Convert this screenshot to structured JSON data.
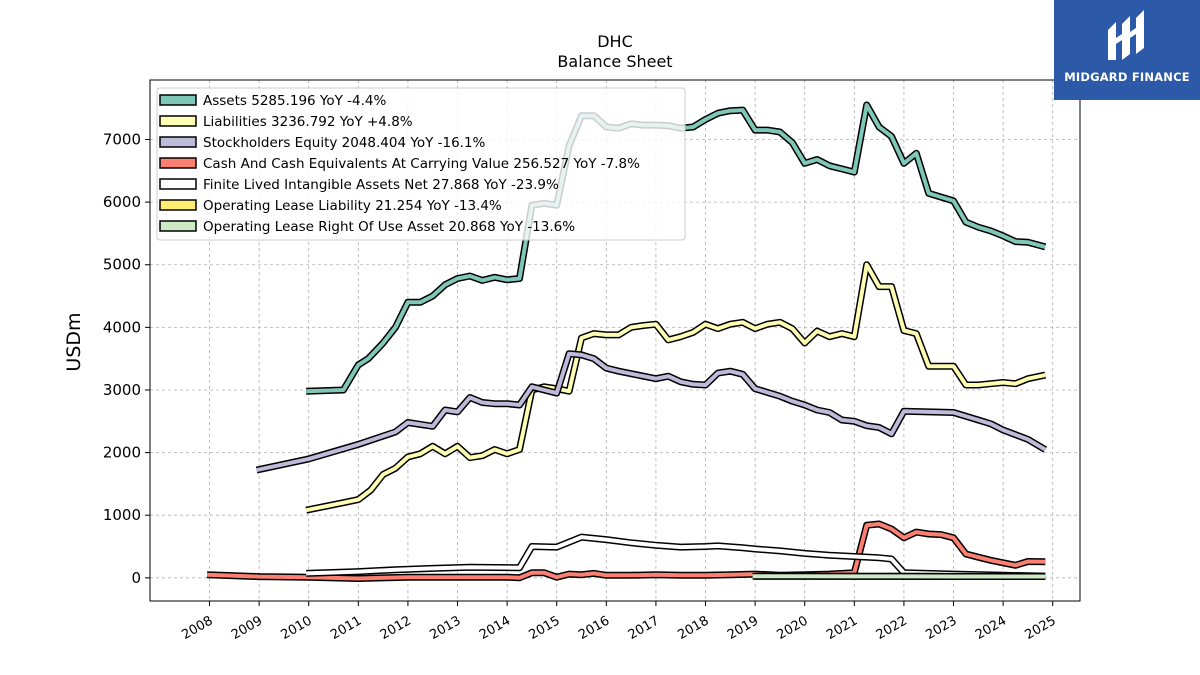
{
  "chart_data": {
    "type": "line",
    "title": "DHC",
    "subtitle": "Balance  Sheet",
    "ylabel": "USDm",
    "xlabel": "",
    "ylim": [
      -370,
      7950
    ],
    "xlim": [
      2006.8,
      2025.55
    ],
    "yticks": [
      0,
      1000,
      2000,
      3000,
      4000,
      5000,
      6000,
      7000
    ],
    "xticks": [
      2008,
      2009,
      2010,
      2011,
      2012,
      2013,
      2014,
      2015,
      2016,
      2017,
      2018,
      2019,
      2020,
      2021,
      2022,
      2023,
      2024,
      2025
    ],
    "grid": true,
    "legend_position": "top-left",
    "series": [
      {
        "name": "Assets",
        "legend_text": "Assets  5285.196 YoY -4.4%",
        "color": "#7fc8b8",
        "points": [
          [
            2009.95,
            2980
          ],
          [
            2010.7,
            3000
          ],
          [
            2011.0,
            3400
          ],
          [
            2011.2,
            3500
          ],
          [
            2011.5,
            3750
          ],
          [
            2011.75,
            4000
          ],
          [
            2012.0,
            4400
          ],
          [
            2012.25,
            4400
          ],
          [
            2012.5,
            4500
          ],
          [
            2012.75,
            4680
          ],
          [
            2013.0,
            4780
          ],
          [
            2013.25,
            4820
          ],
          [
            2013.5,
            4750
          ],
          [
            2013.75,
            4800
          ],
          [
            2014.0,
            4760
          ],
          [
            2014.25,
            4780
          ],
          [
            2014.5,
            5950
          ],
          [
            2014.75,
            5980
          ],
          [
            2015.0,
            5950
          ],
          [
            2015.25,
            6900
          ],
          [
            2015.5,
            7380
          ],
          [
            2015.75,
            7380
          ],
          [
            2016.0,
            7200
          ],
          [
            2016.25,
            7180
          ],
          [
            2016.5,
            7250
          ],
          [
            2016.75,
            7230
          ],
          [
            2017.0,
            7230
          ],
          [
            2017.25,
            7220
          ],
          [
            2017.5,
            7180
          ],
          [
            2017.75,
            7200
          ],
          [
            2018.0,
            7320
          ],
          [
            2018.25,
            7420
          ],
          [
            2018.5,
            7460
          ],
          [
            2018.75,
            7470
          ],
          [
            2019.0,
            7150
          ],
          [
            2019.25,
            7150
          ],
          [
            2019.5,
            7120
          ],
          [
            2019.75,
            6950
          ],
          [
            2020.0,
            6620
          ],
          [
            2020.25,
            6680
          ],
          [
            2020.5,
            6580
          ],
          [
            2020.75,
            6530
          ],
          [
            2021.0,
            6480
          ],
          [
            2021.25,
            7550
          ],
          [
            2021.5,
            7200
          ],
          [
            2021.75,
            7050
          ],
          [
            2022.0,
            6620
          ],
          [
            2022.25,
            6780
          ],
          [
            2022.5,
            6140
          ],
          [
            2022.75,
            6080
          ],
          [
            2023.0,
            6020
          ],
          [
            2023.25,
            5680
          ],
          [
            2023.5,
            5600
          ],
          [
            2023.75,
            5540
          ],
          [
            2024.0,
            5460
          ],
          [
            2024.25,
            5370
          ],
          [
            2024.5,
            5360
          ],
          [
            2024.85,
            5285
          ]
        ]
      },
      {
        "name": "Liabilities",
        "legend_text": "Liabilities  3236.792 YoY +4.8%",
        "color": "#ffffb3",
        "points": [
          [
            2009.95,
            1080
          ],
          [
            2010.7,
            1200
          ],
          [
            2011.0,
            1250
          ],
          [
            2011.25,
            1400
          ],
          [
            2011.5,
            1650
          ],
          [
            2011.75,
            1750
          ],
          [
            2012.0,
            1930
          ],
          [
            2012.25,
            1980
          ],
          [
            2012.5,
            2100
          ],
          [
            2012.75,
            1980
          ],
          [
            2013.0,
            2100
          ],
          [
            2013.25,
            1920
          ],
          [
            2013.5,
            1950
          ],
          [
            2013.75,
            2050
          ],
          [
            2014.0,
            1980
          ],
          [
            2014.25,
            2050
          ],
          [
            2014.5,
            3000
          ],
          [
            2014.75,
            3050
          ],
          [
            2015.0,
            3020
          ],
          [
            2015.25,
            2980
          ],
          [
            2015.5,
            3830
          ],
          [
            2015.75,
            3900
          ],
          [
            2016.0,
            3880
          ],
          [
            2016.25,
            3880
          ],
          [
            2016.5,
            4000
          ],
          [
            2016.75,
            4030
          ],
          [
            2017.0,
            4050
          ],
          [
            2017.25,
            3800
          ],
          [
            2017.5,
            3850
          ],
          [
            2017.75,
            3920
          ],
          [
            2018.0,
            4050
          ],
          [
            2018.25,
            3980
          ],
          [
            2018.5,
            4050
          ],
          [
            2018.75,
            4080
          ],
          [
            2019.0,
            3980
          ],
          [
            2019.25,
            4050
          ],
          [
            2019.5,
            4080
          ],
          [
            2019.75,
            3980
          ],
          [
            2020.0,
            3750
          ],
          [
            2020.25,
            3940
          ],
          [
            2020.5,
            3850
          ],
          [
            2020.75,
            3900
          ],
          [
            2021.0,
            3850
          ],
          [
            2021.25,
            5000
          ],
          [
            2021.5,
            4650
          ],
          [
            2021.75,
            4650
          ],
          [
            2022.0,
            3950
          ],
          [
            2022.25,
            3900
          ],
          [
            2022.5,
            3380
          ],
          [
            2022.75,
            3380
          ],
          [
            2023.0,
            3380
          ],
          [
            2023.25,
            3080
          ],
          [
            2023.5,
            3080
          ],
          [
            2023.75,
            3100
          ],
          [
            2024.0,
            3120
          ],
          [
            2024.25,
            3100
          ],
          [
            2024.5,
            3180
          ],
          [
            2024.85,
            3237
          ]
        ]
      },
      {
        "name": "Stockholders Equity",
        "legend_text": "Stockholders Equity  2048.404 YoY -16.1%",
        "color": "#bebada",
        "points": [
          [
            2008.95,
            1720
          ],
          [
            2010.0,
            1900
          ],
          [
            2011.0,
            2130
          ],
          [
            2011.75,
            2330
          ],
          [
            2012.0,
            2480
          ],
          [
            2012.25,
            2450
          ],
          [
            2012.5,
            2420
          ],
          [
            2012.75,
            2680
          ],
          [
            2013.0,
            2650
          ],
          [
            2013.25,
            2880
          ],
          [
            2013.5,
            2800
          ],
          [
            2013.75,
            2780
          ],
          [
            2014.0,
            2780
          ],
          [
            2014.25,
            2760
          ],
          [
            2014.5,
            3050
          ],
          [
            2014.75,
            3000
          ],
          [
            2015.0,
            2950
          ],
          [
            2015.25,
            3580
          ],
          [
            2015.5,
            3560
          ],
          [
            2015.75,
            3500
          ],
          [
            2016.0,
            3350
          ],
          [
            2016.25,
            3300
          ],
          [
            2016.5,
            3260
          ],
          [
            2016.75,
            3220
          ],
          [
            2017.0,
            3180
          ],
          [
            2017.25,
            3220
          ],
          [
            2017.5,
            3130
          ],
          [
            2017.75,
            3090
          ],
          [
            2018.0,
            3080
          ],
          [
            2018.25,
            3270
          ],
          [
            2018.5,
            3300
          ],
          [
            2018.75,
            3250
          ],
          [
            2019.0,
            3020
          ],
          [
            2019.5,
            2900
          ],
          [
            2019.75,
            2820
          ],
          [
            2020.0,
            2760
          ],
          [
            2020.25,
            2680
          ],
          [
            2020.5,
            2640
          ],
          [
            2020.75,
            2520
          ],
          [
            2021.0,
            2500
          ],
          [
            2021.25,
            2430
          ],
          [
            2021.5,
            2400
          ],
          [
            2021.75,
            2300
          ],
          [
            2022.0,
            2660
          ],
          [
            2022.5,
            2650
          ],
          [
            2023.0,
            2640
          ],
          [
            2023.5,
            2520
          ],
          [
            2023.75,
            2460
          ],
          [
            2024.0,
            2360
          ],
          [
            2024.5,
            2210
          ],
          [
            2024.85,
            2048
          ]
        ]
      },
      {
        "name": "Cash And Cash Equivalents At Carrying Value",
        "legend_text": "Cash And Cash Equivalents At Carrying Value  256.527 YoY -7.8%",
        "color": "#fb8072",
        "points": [
          [
            2007.95,
            50
          ],
          [
            2009.0,
            20
          ],
          [
            2010.0,
            10
          ],
          [
            2011.0,
            -10
          ],
          [
            2012.0,
            10
          ],
          [
            2013.0,
            10
          ],
          [
            2014.0,
            10
          ],
          [
            2014.25,
            0
          ],
          [
            2014.5,
            80
          ],
          [
            2014.75,
            80
          ],
          [
            2015.0,
            10
          ],
          [
            2015.25,
            60
          ],
          [
            2015.5,
            50
          ],
          [
            2015.75,
            70
          ],
          [
            2016.0,
            40
          ],
          [
            2016.5,
            40
          ],
          [
            2017.0,
            50
          ],
          [
            2017.5,
            40
          ],
          [
            2018.0,
            40
          ],
          [
            2018.5,
            50
          ],
          [
            2019.0,
            60
          ],
          [
            2019.5,
            40
          ],
          [
            2020.0,
            50
          ],
          [
            2020.5,
            60
          ],
          [
            2021.0,
            80
          ],
          [
            2021.25,
            840
          ],
          [
            2021.5,
            860
          ],
          [
            2021.75,
            780
          ],
          [
            2022.0,
            640
          ],
          [
            2022.25,
            730
          ],
          [
            2022.5,
            700
          ],
          [
            2022.75,
            690
          ],
          [
            2023.0,
            640
          ],
          [
            2023.25,
            380
          ],
          [
            2023.5,
            330
          ],
          [
            2023.75,
            280
          ],
          [
            2024.0,
            240
          ],
          [
            2024.25,
            200
          ],
          [
            2024.5,
            260
          ],
          [
            2024.85,
            257
          ]
        ]
      },
      {
        "name": "Finite Lived Intangible Assets Net",
        "legend_text": "Finite Lived Intangible Assets Net  27.868 YoY -23.9%",
        "color": "#ffffff",
        "points": [
          [
            2009.95,
            70
          ],
          [
            2011.0,
            100
          ],
          [
            2011.75,
            130
          ],
          [
            2012.5,
            150
          ],
          [
            2013.25,
            170
          ],
          [
            2014.25,
            160
          ],
          [
            2014.5,
            500
          ],
          [
            2015.0,
            490
          ],
          [
            2015.5,
            650
          ],
          [
            2016.0,
            610
          ],
          [
            2016.5,
            560
          ],
          [
            2017.0,
            520
          ],
          [
            2017.5,
            490
          ],
          [
            2018.0,
            500
          ],
          [
            2018.25,
            510
          ],
          [
            2018.75,
            480
          ],
          [
            2019.0,
            460
          ],
          [
            2019.5,
            430
          ],
          [
            2020.0,
            390
          ],
          [
            2020.5,
            360
          ],
          [
            2021.0,
            340
          ],
          [
            2021.5,
            320
          ],
          [
            2021.75,
            300
          ],
          [
            2022.0,
            80
          ],
          [
            2023.0,
            60
          ],
          [
            2024.0,
            40
          ],
          [
            2024.85,
            28
          ]
        ]
      },
      {
        "name": "Operating Lease Liability",
        "legend_text": "Operating Lease Liability  21.254 YoY -13.4%",
        "color": "#ffed6f",
        "points": [
          [
            2019.0,
            25
          ],
          [
            2020.0,
            25
          ],
          [
            2021.0,
            25
          ],
          [
            2022.0,
            24
          ],
          [
            2023.0,
            23
          ],
          [
            2024.0,
            22
          ],
          [
            2024.85,
            21
          ]
        ]
      },
      {
        "name": "Operating Lease Right Of Use Asset",
        "legend_text": "Operating Lease Right Of Use Asset  20.868 YoY -13.6%",
        "color": "#ccebc5",
        "points": [
          [
            2018.95,
            24
          ],
          [
            2020.0,
            24
          ],
          [
            2021.0,
            23
          ],
          [
            2022.0,
            23
          ],
          [
            2023.0,
            22
          ],
          [
            2024.0,
            21
          ],
          [
            2024.85,
            21
          ]
        ]
      }
    ]
  },
  "logo": {
    "text": "MIDGARD FINANCE"
  }
}
